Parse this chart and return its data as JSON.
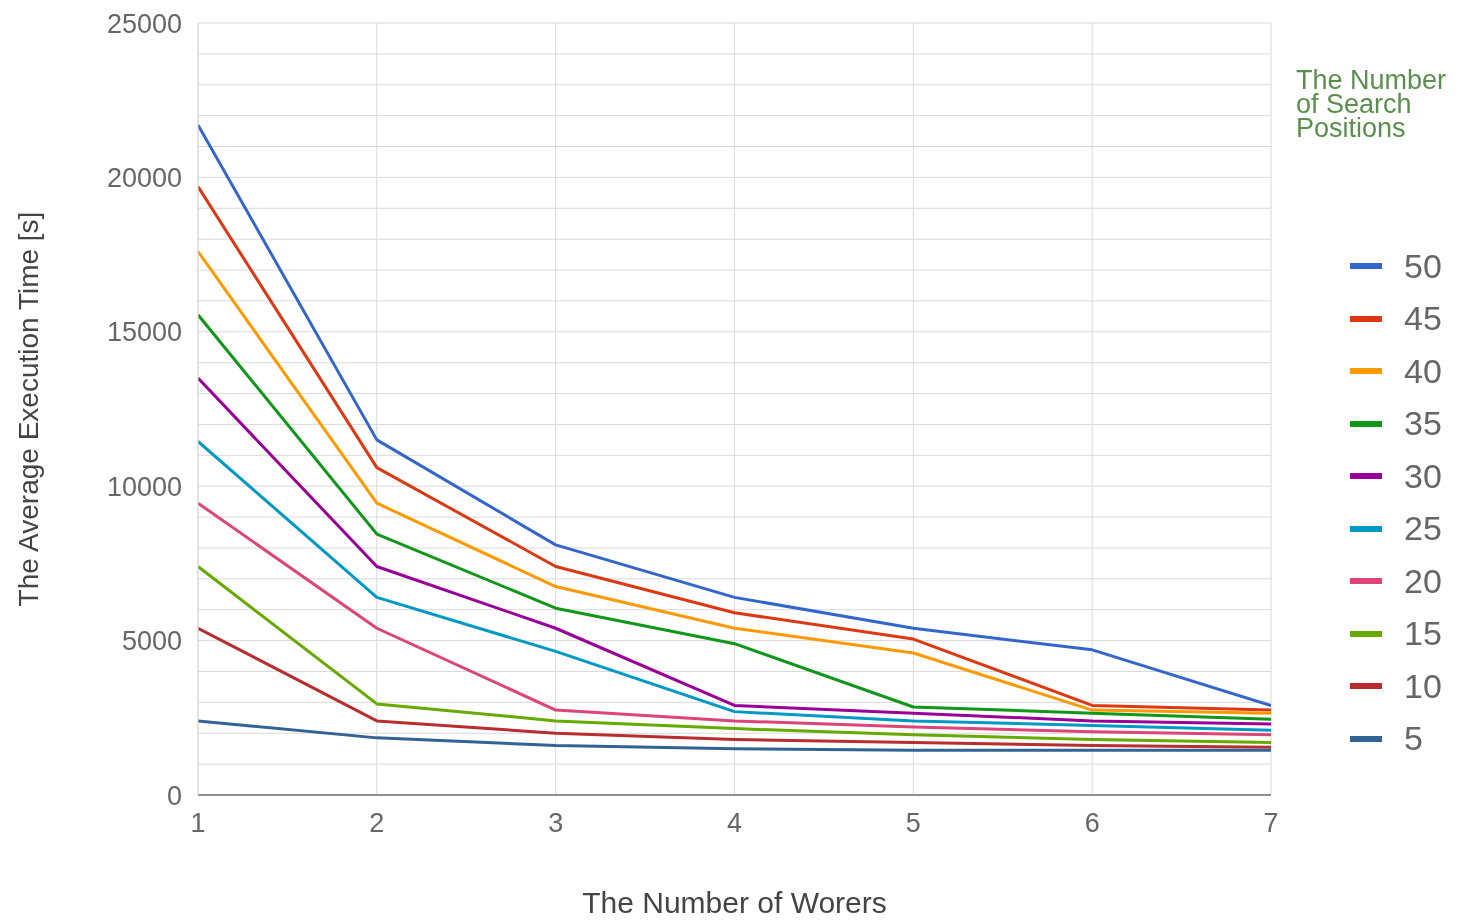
{
  "chart_data": {
    "type": "line",
    "xlabel": "The Number of Worers",
    "ylabel": "The Average Execution Time [s]",
    "legend_title": "The Number of Search Positions",
    "x": [
      1,
      2,
      3,
      4,
      5,
      6,
      7
    ],
    "xlim": [
      1,
      7
    ],
    "xticks": [
      1,
      2,
      3,
      4,
      5,
      6,
      7
    ],
    "ylim": [
      0,
      25000
    ],
    "yticks": [
      0,
      {
        "value": 1000,
        "label": null
      },
      {
        "value": 2000,
        "label": null
      },
      {
        "value": 3000,
        "label": null
      },
      {
        "value": 4000,
        "label": null
      },
      5000,
      {
        "value": 6000,
        "label": null
      },
      {
        "value": 7000,
        "label": null
      },
      {
        "value": 8000,
        "label": null
      },
      {
        "value": 9000,
        "label": null
      },
      10000,
      {
        "value": 11000,
        "label": null
      },
      {
        "value": 12000,
        "label": null
      },
      {
        "value": 13000,
        "label": null
      },
      {
        "value": 14000,
        "label": null
      },
      15000,
      {
        "value": 16000,
        "label": null
      },
      {
        "value": 17000,
        "label": null
      },
      {
        "value": 18000,
        "label": null
      },
      {
        "value": 19000,
        "label": null
      },
      20000,
      {
        "value": 21000,
        "label": null
      },
      {
        "value": 22000,
        "label": null
      },
      {
        "value": 23000,
        "label": null
      },
      {
        "value": 24000,
        "label": null
      },
      25000
    ],
    "grid": true,
    "legend": "right",
    "marker": "none",
    "line_style": "solid",
    "series": [
      {
        "name": "50",
        "color": "#3366cc",
        "values": [
          21700,
          11500,
          8100,
          6400,
          5400,
          4700,
          2900
        ]
      },
      {
        "name": "45",
        "color": "#dc3912",
        "values": [
          19700,
          10600,
          7400,
          5900,
          5050,
          2900,
          2750
        ]
      },
      {
        "name": "40",
        "color": "#ff9900",
        "values": [
          17600,
          9450,
          6750,
          5400,
          4600,
          2750,
          2650
        ]
      },
      {
        "name": "35",
        "color": "#109618",
        "values": [
          15550,
          8450,
          6050,
          4900,
          2850,
          2650,
          2450
        ]
      },
      {
        "name": "30",
        "color": "#990099",
        "values": [
          13500,
          7400,
          5400,
          2900,
          2650,
          2400,
          2300
        ]
      },
      {
        "name": "25",
        "color": "#0099c6",
        "values": [
          11450,
          6400,
          4650,
          2700,
          2400,
          2250,
          2100
        ]
      },
      {
        "name": "20",
        "color": "#dd4477",
        "values": [
          9450,
          5400,
          2750,
          2400,
          2200,
          2050,
          1950
        ]
      },
      {
        "name": "15",
        "color": "#66aa00",
        "values": [
          7400,
          2950,
          2400,
          2150,
          1950,
          1800,
          1700
        ]
      },
      {
        "name": "10",
        "color": "#b82e2e",
        "values": [
          5400,
          2400,
          2000,
          1800,
          1700,
          1600,
          1550
        ]
      },
      {
        "name": "5",
        "color": "#316395",
        "values": [
          2400,
          1850,
          1600,
          1500,
          1450,
          1450,
          1450
        ]
      }
    ]
  }
}
